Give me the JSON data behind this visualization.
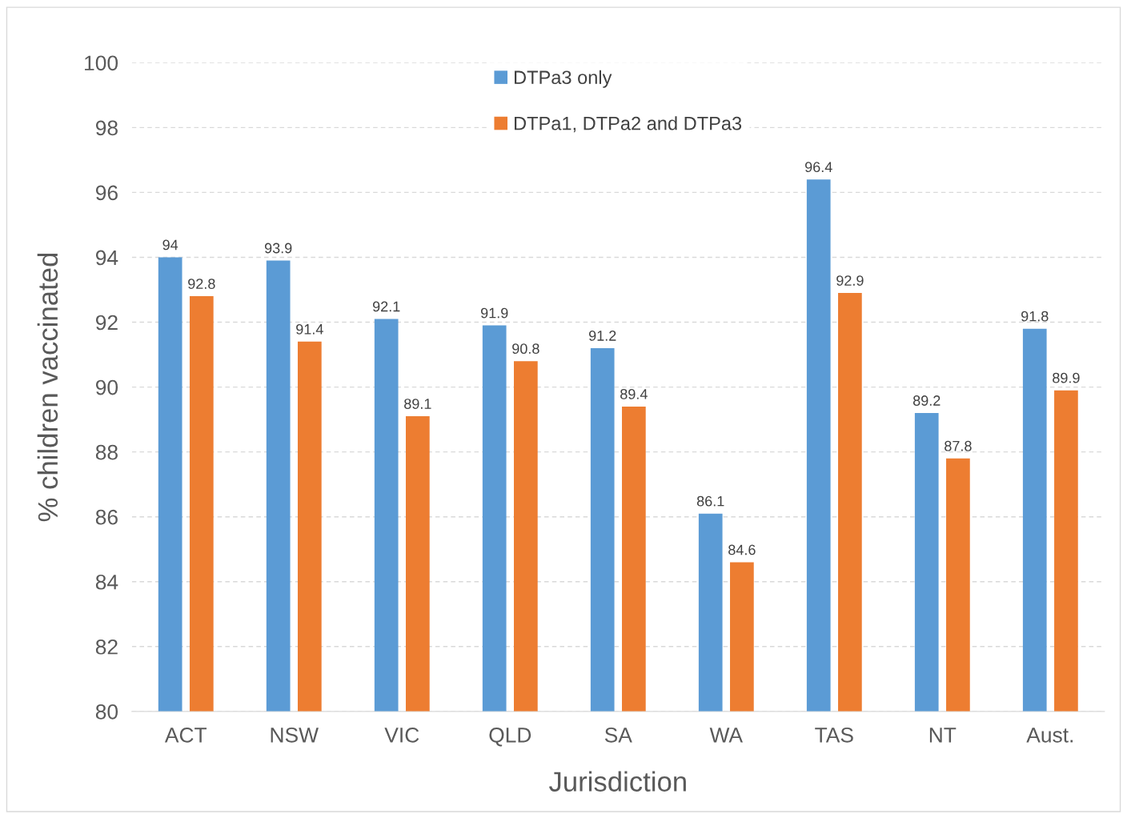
{
  "chart_data": {
    "type": "bar",
    "xlabel": "Jurisdiction",
    "ylabel": "% children vaccinated",
    "categories": [
      "ACT",
      "NSW",
      "VIC",
      "QLD",
      "SA",
      "WA",
      "TAS",
      "NT",
      "Aust."
    ],
    "series": [
      {
        "name": "DTPa3 only",
        "color": "#5b9bd5",
        "values": [
          94,
          93.9,
          92.1,
          91.9,
          91.2,
          86.1,
          96.4,
          89.2,
          91.8
        ]
      },
      {
        "name": "DTPa1, DTPa2 and DTPa3",
        "color": "#ed7d31",
        "values": [
          92.8,
          91.4,
          89.1,
          90.8,
          89.4,
          84.6,
          92.9,
          87.8,
          89.9
        ]
      }
    ],
    "ylim": [
      80,
      100
    ],
    "yticks": [
      80,
      82,
      84,
      86,
      88,
      90,
      92,
      94,
      96,
      98,
      100
    ],
    "grid": "y",
    "legend": "top",
    "data_labels": true
  }
}
